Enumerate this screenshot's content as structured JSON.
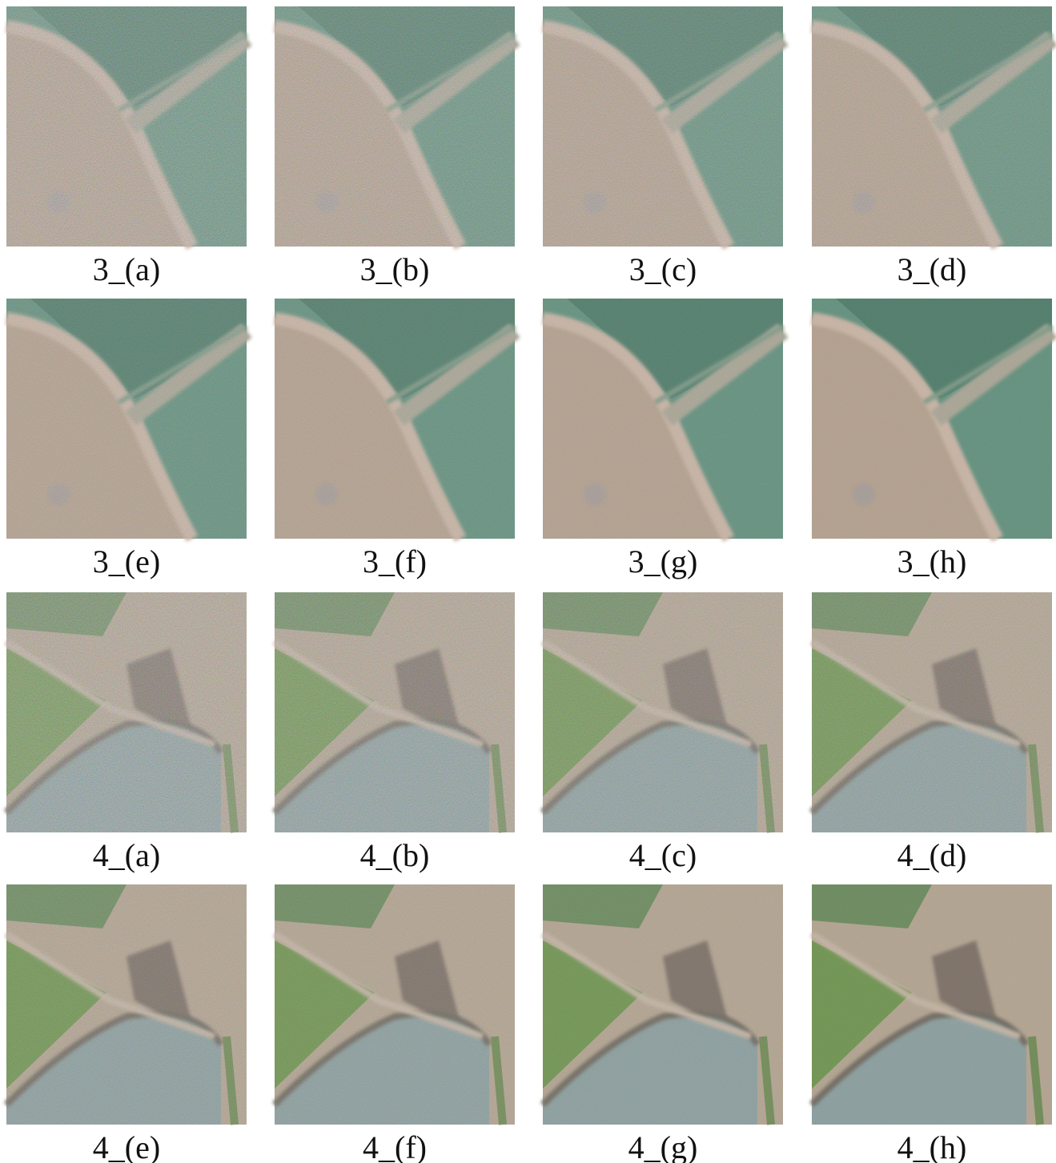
{
  "panels": [
    {
      "label": "3_(a)"
    },
    {
      "label": "3_(b)"
    },
    {
      "label": "3_(c)"
    },
    {
      "label": "3_(d)"
    },
    {
      "label": "3_(e)"
    },
    {
      "label": "3_(f)"
    },
    {
      "label": "3_(g)"
    },
    {
      "label": "3_(h)"
    },
    {
      "label": "4_(a)"
    },
    {
      "label": "4_(b)"
    },
    {
      "label": "4_(c)"
    },
    {
      "label": "4_(d)"
    },
    {
      "label": "4_(e)"
    },
    {
      "label": "4_(f)"
    },
    {
      "label": "4_(g)"
    },
    {
      "label": "4_(h)"
    }
  ]
}
